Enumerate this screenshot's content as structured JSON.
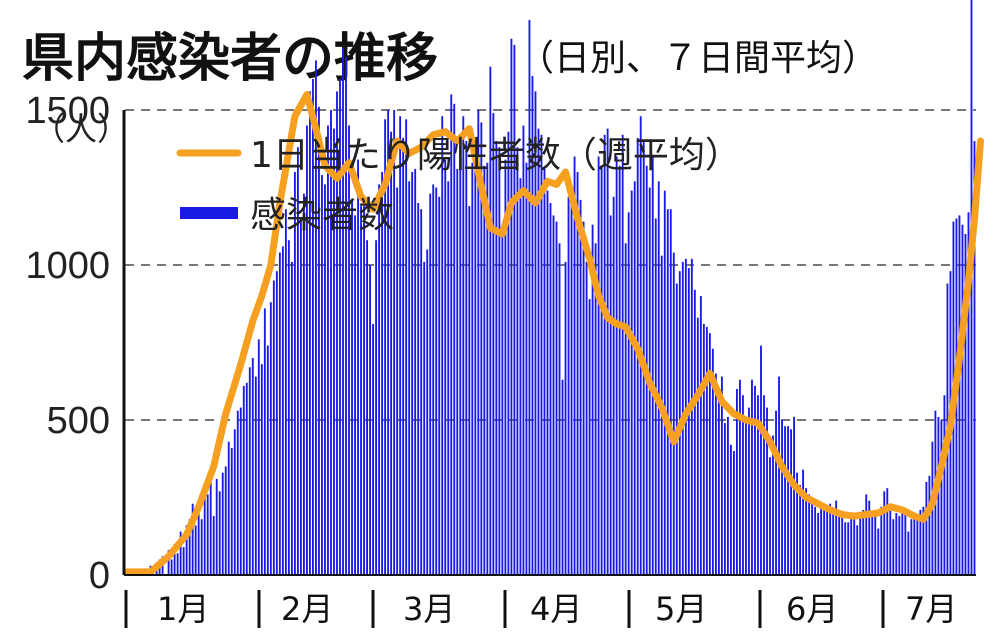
{
  "title": "県内感染者の推移",
  "subtitle": "（日別、７日間平均）",
  "colors": {
    "bars": "#1a1ae6",
    "average": "#f5a020",
    "grid": "#777777",
    "axis": "#111111"
  },
  "chart_data": {
    "type": "bar",
    "ylabel": "（人）",
    "ylim": [
      0,
      3000
    ],
    "yticks": [
      0,
      500,
      1000,
      1500,
      2000,
      2500
    ],
    "grid": true,
    "legend_position": "top-left",
    "months": [
      "1月",
      "2月",
      "3月",
      "4月",
      "5月",
      "6月",
      "7月"
    ],
    "series": [
      {
        "name": "1日当たり陽性者数（週平均）",
        "type": "line",
        "x": [
          0,
          8,
          14,
          20,
          24,
          29,
          33,
          38,
          42,
          45,
          48,
          51,
          56,
          60,
          63,
          66,
          70,
          74,
          78,
          82,
          86,
          90,
          94,
          98,
          100,
          102,
          106,
          110,
          114,
          117,
          121,
          125,
          128,
          132,
          136,
          140,
          143,
          146,
          150,
          154,
          157,
          160,
          163,
          166,
          170,
          174,
          178,
          182,
          186,
          190,
          194,
          198,
          202,
          206,
          210,
          214,
          218,
          222,
          226,
          230,
          234,
          238,
          242,
          246,
          250,
          254,
          258,
          262,
          265,
          268,
          271,
          274,
          277,
          280,
          282,
          284
        ],
        "values": [
          10,
          10,
          60,
          130,
          220,
          350,
          520,
          680,
          820,
          900,
          1000,
          1200,
          1480,
          1550,
          1440,
          1320,
          1280,
          1330,
          1220,
          1180,
          1260,
          1400,
          1360,
          1380,
          1400,
          1420,
          1430,
          1400,
          1440,
          1300,
          1120,
          1100,
          1200,
          1240,
          1200,
          1270,
          1260,
          1300,
          1150,
          1020,
          900,
          830,
          810,
          800,
          730,
          620,
          540,
          430,
          520,
          580,
          650,
          560,
          520,
          500,
          490,
          430,
          350,
          290,
          250,
          230,
          210,
          195,
          190,
          195,
          200,
          220,
          210,
          190,
          180,
          230,
          350,
          480,
          700,
          950,
          1150,
          1400
        ]
      },
      {
        "name": "感染者数",
        "type": "bar",
        "values": [
          0,
          0,
          5,
          10,
          0,
          15,
          20,
          0,
          30,
          0,
          40,
          50,
          60,
          0,
          80,
          50,
          100,
          70,
          140,
          90,
          160,
          180,
          230,
          160,
          230,
          180,
          260,
          260,
          340,
          190,
          310,
          270,
          330,
          350,
          430,
          410,
          470,
          530,
          540,
          610,
          620,
          670,
          700,
          640,
          760,
          680,
          860,
          740,
          880,
          950,
          980,
          1040,
          1060,
          1180,
          1080,
          1010,
          1300,
          1380,
          1150,
          1230,
          1450,
          1560,
          1600,
          1660,
          1510,
          1290,
          1260,
          1450,
          1500,
          1440,
          1560,
          1600,
          1700,
          1670,
          1450,
          1210,
          1160,
          1340,
          1190,
          1190,
          1080,
          1000,
          810,
          1080,
          1260,
          1300,
          1470,
          1500,
          1430,
          1500,
          1250,
          1480,
          1410,
          1470,
          1270,
          1300,
          1310,
          1200,
          1180,
          1010,
          1050,
          1230,
          1260,
          1250,
          1220,
          1480,
          1340,
          1270,
          1550,
          1520,
          1310,
          1340,
          1480,
          1400,
          1190,
          1330,
          1390,
          1500,
          1460,
          1320,
          1330,
          1640,
          1490,
          1400,
          1380,
          1090,
          1340,
          1430,
          1730,
          1710,
          1380,
          1280,
          1450,
          1330,
          1790,
          1610,
          1560,
          1440,
          1420,
          1310,
          1240,
          1200,
          1160,
          1140,
          1070,
          630,
          1010,
          1220,
          1250,
          1350,
          1300,
          1210,
          1140,
          1010,
          890,
          1130,
          1070,
          1350,
          1320,
          1420,
          1440,
          1160,
          1220,
          1350,
          1320,
          1420,
          1070,
          1170,
          1240,
          1270,
          1410,
          1480,
          1400,
          1320,
          1250,
          1350,
          1150,
          1270,
          1030,
          1240,
          1180,
          1180,
          1040,
          940,
          980,
          1010,
          1020,
          990,
          1020,
          920,
          830,
          900,
          810,
          800,
          780,
          730,
          650,
          560,
          640,
          490,
          510,
          420,
          400,
          600,
          630,
          580,
          490,
          540,
          630,
          610,
          580,
          740,
          580,
          540,
          380,
          450,
          530,
          640,
          500,
          480,
          480,
          470,
          510,
          330,
          290,
          340,
          280,
          260,
          240,
          220,
          200,
          220,
          230,
          210,
          230,
          210,
          240,
          190,
          200,
          170,
          170,
          200,
          200,
          160,
          200,
          210,
          260,
          240,
          200,
          200,
          150,
          220,
          270,
          280,
          210,
          180,
          200,
          190,
          200,
          210,
          140,
          180,
          190,
          180,
          210,
          220,
          300,
          320,
          430,
          530,
          510,
          500,
          580,
          940,
          980,
          1140,
          1150,
          1160,
          1130,
          1100,
          1170,
          2740,
          1400
        ]
      }
    ]
  }
}
